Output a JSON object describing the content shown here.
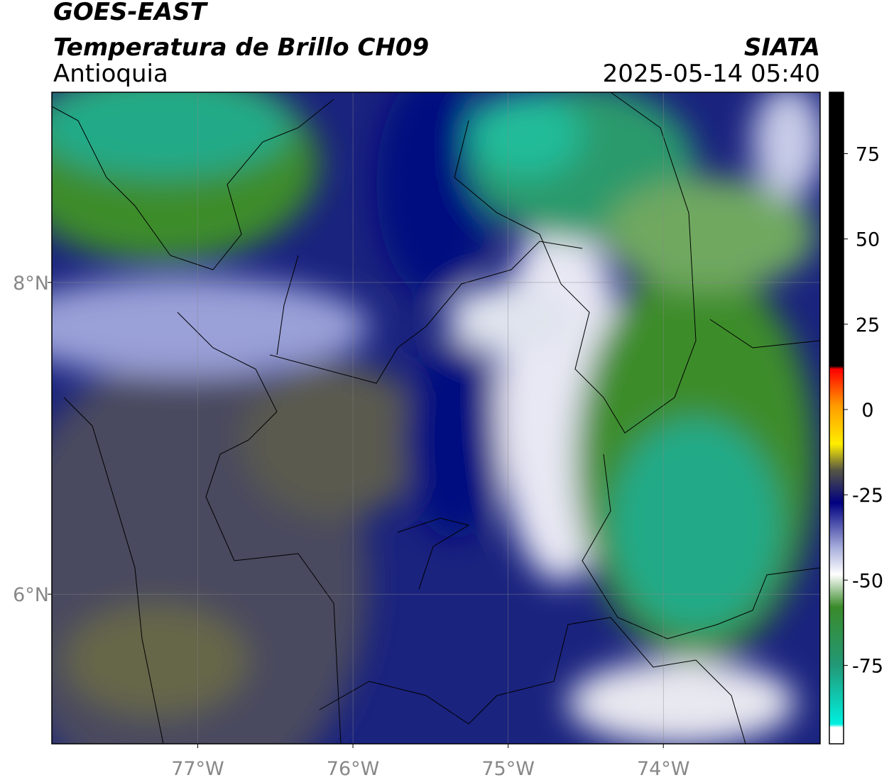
{
  "header": {
    "satellite": "GOES-EAST",
    "product": "Temperatura de Brillo CH09",
    "region": "Antioquia",
    "source": "SIATA",
    "datetime": "2025-05-14 05:40"
  },
  "map": {
    "xlim": [
      -77.94,
      -72.99
    ],
    "ylim": [
      5.04,
      9.22
    ],
    "xticks": [
      {
        "value": -77,
        "label": "77°W"
      },
      {
        "value": -76,
        "label": "76°W"
      },
      {
        "value": -75,
        "label": "75°W"
      },
      {
        "value": -74,
        "label": "74°W"
      }
    ],
    "yticks": [
      {
        "value": 8,
        "label": "8°N"
      },
      {
        "value": 6,
        "label": "6°N"
      }
    ]
  },
  "colorbar": {
    "lim": [
      -98,
      93
    ],
    "ticks": [
      75,
      50,
      25,
      0,
      -25,
      -50,
      -75
    ]
  }
}
